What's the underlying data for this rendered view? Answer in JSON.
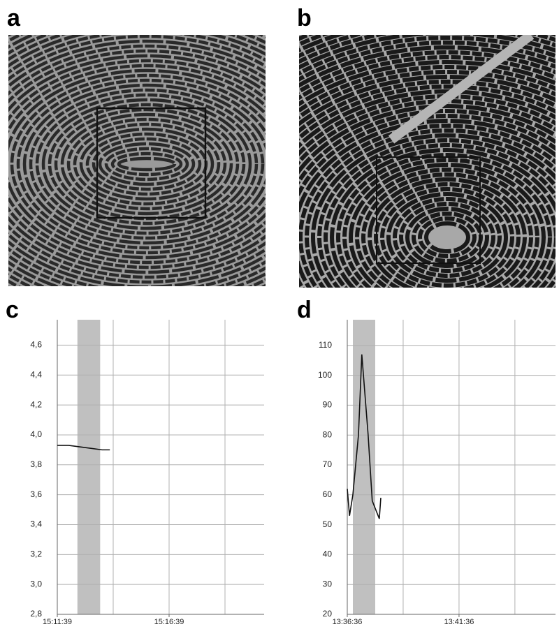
{
  "images": [
    {
      "label": "a"
    },
    {
      "label": "b"
    }
  ],
  "chart_data": [
    {
      "type": "line",
      "label": "c",
      "x": [
        "15:11:39",
        "15:12:09",
        "15:12:39",
        "15:13:09",
        "15:13:39",
        "15:14:00"
      ],
      "series": [
        {
          "color": "#111111",
          "values": [
            3.93,
            3.93,
            3.92,
            3.91,
            3.9,
            3.9
          ]
        }
      ],
      "highlight": [
        "15:12:33",
        "15:13:34"
      ],
      "highlight_color": "#c0c0c0",
      "xlim": [
        "15:11:39",
        "15:20:54"
      ],
      "xticks": [
        "15:11:39",
        "15:16:39"
      ],
      "xgrid": [
        "15:14:09",
        "15:16:39",
        "15:19:09"
      ],
      "ylim": [
        2.8,
        4.77
      ],
      "yticks": [
        {
          "value": 2.8,
          "label": "2,8"
        },
        {
          "value": 3.0,
          "label": "3,0"
        },
        {
          "value": 3.2,
          "label": "3,2"
        },
        {
          "value": 3.4,
          "label": "3,4"
        },
        {
          "value": 3.6,
          "label": "3,6"
        },
        {
          "value": 3.8,
          "label": "3,8"
        },
        {
          "value": 4.0,
          "label": "4,0"
        },
        {
          "value": 4.2,
          "label": "4,2"
        },
        {
          "value": 4.4,
          "label": "4,4"
        },
        {
          "value": 4.6,
          "label": "4,6"
        }
      ],
      "grid": true
    },
    {
      "type": "line",
      "label": "d",
      "x": [
        "13:36:36",
        "13:36:42",
        "13:36:51",
        "13:37:06",
        "13:37:15",
        "13:37:32",
        "13:37:43",
        "13:38:02",
        "13:38:06"
      ],
      "series": [
        {
          "color": "#111111",
          "values": [
            62,
            53,
            60,
            80,
            107,
            80,
            58,
            52,
            59
          ]
        }
      ],
      "highlight": [
        "13:36:51",
        "13:37:51"
      ],
      "highlight_color": "#c0c0c0",
      "xlim": [
        "13:36:36",
        "13:45:55"
      ],
      "xticks": [
        "13:36:36",
        "13:41:36"
      ],
      "xgrid": [
        "13:39:06",
        "13:41:36",
        "13:44:06"
      ],
      "ylim": [
        20,
        118.6
      ],
      "yticks": [
        20,
        30,
        40,
        50,
        60,
        70,
        80,
        90,
        100,
        110
      ],
      "grid": true
    }
  ]
}
